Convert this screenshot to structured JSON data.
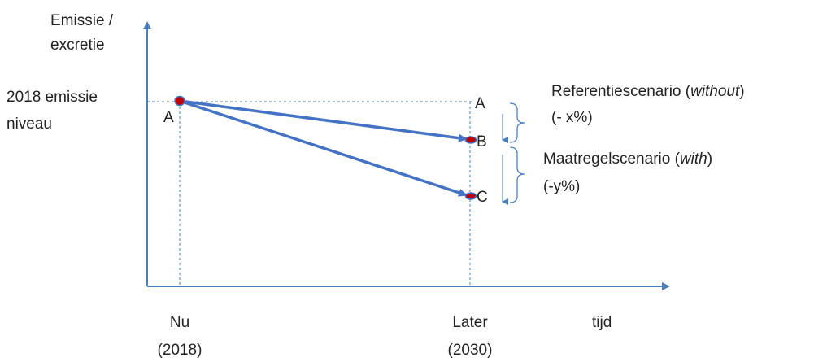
{
  "y_axis_label": [
    "Emissie /",
    "excretie"
  ],
  "baseline_label": [
    "2018 emissie",
    "niveau"
  ],
  "x_axis": {
    "now": [
      "Nu",
      "(2018)"
    ],
    "later": [
      "Later",
      "(2030)"
    ],
    "label": "tijd"
  },
  "points": {
    "start": "A",
    "later_a": "A",
    "b": "B",
    "c": "C"
  },
  "scenarios": {
    "reference": {
      "title_prefix": "Referentiescenario (",
      "title_italic": "without",
      "title_suffix": ")",
      "change": "(- x%)"
    },
    "measures": {
      "title_prefix": "Maatregelscenario (",
      "title_italic": "with",
      "title_suffix": ")",
      "change": "(-y%)"
    }
  },
  "colors": {
    "axis": "#4a7ebb",
    "arrow": "#4472c4",
    "point_fill": "#c00000",
    "point_stroke": "#4472c4",
    "brace": "#4f81bd",
    "text": "#222222"
  }
}
